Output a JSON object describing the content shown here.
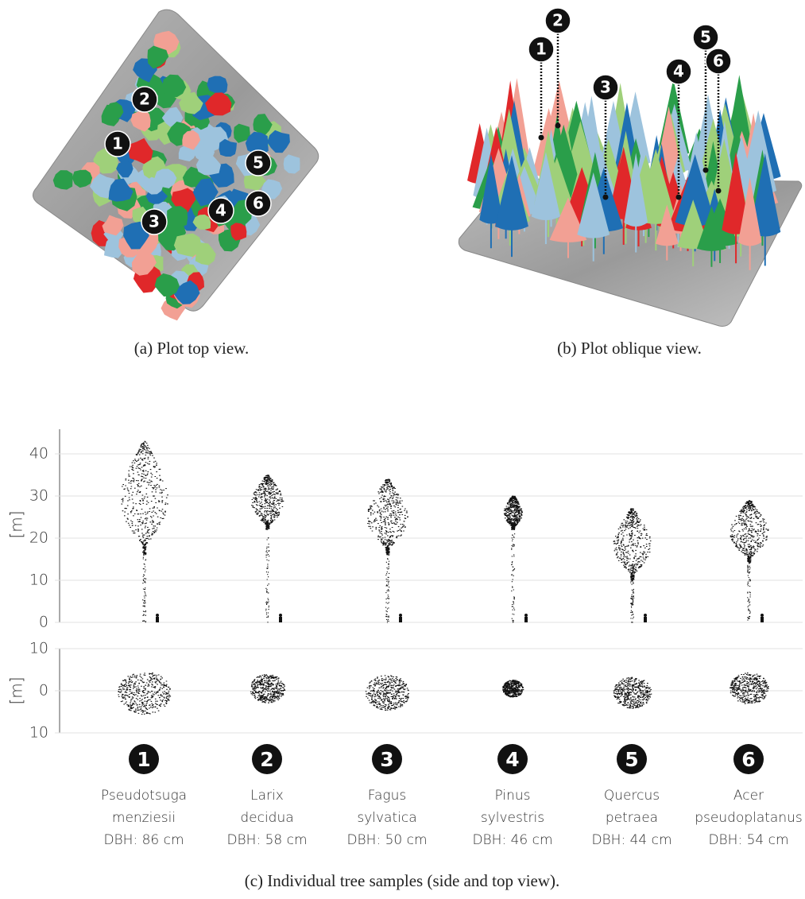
{
  "panel_a": {
    "caption": "(a) Plot top view.",
    "markers": [
      "1",
      "2",
      "3",
      "4",
      "5",
      "6"
    ]
  },
  "panel_b": {
    "caption": "(b) Plot oblique view.",
    "markers": [
      "1",
      "2",
      "3",
      "4",
      "5",
      "6"
    ]
  },
  "panel_c": {
    "caption": "(c) Individual tree samples (side and top view).",
    "side_axis": {
      "label": "[m]",
      "ticks": [
        0,
        10,
        20,
        30,
        40
      ]
    },
    "top_axis": {
      "label": "[m]",
      "ticks": [
        {
          "value": 10,
          "label": "10"
        },
        0,
        {
          "value": -10,
          "label": "10"
        }
      ]
    },
    "trees": [
      {
        "number": "1",
        "name_lines": [
          "Pseudotsuga",
          "menziesii"
        ],
        "dbh": "DBH: 86 cm"
      },
      {
        "number": "2",
        "name_lines": [
          "Larix",
          "decidua"
        ],
        "dbh": "DBH: 58 cm"
      },
      {
        "number": "3",
        "name_lines": [
          "Fagus",
          "sylvatica"
        ],
        "dbh": "DBH: 50 cm"
      },
      {
        "number": "4",
        "name_lines": [
          "Pinus",
          "sylvestris"
        ],
        "dbh": "DBH: 46 cm"
      },
      {
        "number": "5",
        "name_lines": [
          "Quercus",
          "petraea"
        ],
        "dbh": "DBH: 44 cm"
      },
      {
        "number": "6",
        "name_lines": [
          "Acer",
          "pseudoplatanus"
        ],
        "dbh": "DBH: 54 cm"
      }
    ]
  }
}
